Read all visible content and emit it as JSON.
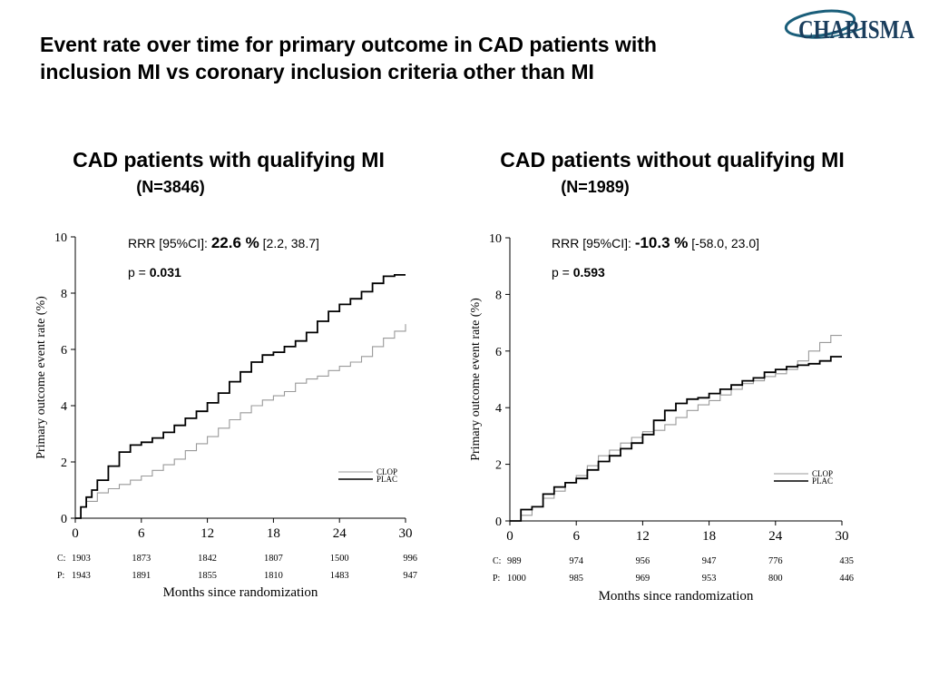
{
  "slide_title_line1": "Event rate over time for primary outcome in CAD patients with",
  "slide_title_line2": "inclusion MI vs coronary inclusion criteria other than MI",
  "logo_text": "CHARISMA",
  "colors": {
    "clop": "#999999",
    "plac": "#000000"
  },
  "chart_data": [
    {
      "type": "line",
      "title": "CAD patients with qualifying MI",
      "subtitle": "(N=3846)",
      "xlabel": "Months since randomization",
      "ylabel": "Primary outcome event rate (%)",
      "xlim": [
        0,
        30
      ],
      "ylim": [
        0,
        10
      ],
      "xticks": [
        0,
        6,
        12,
        18,
        24,
        30
      ],
      "yticks": [
        0,
        2,
        4,
        6,
        8,
        10
      ],
      "grid": false,
      "legend_position": "bottom-right",
      "stats": {
        "rrr_label": "RRR [95%CI]: ",
        "rrr_value": "22.6 %",
        "rrr_ci": " [2.2, 38.7]",
        "p_label": "p = ",
        "p_value": "0.031"
      },
      "series": [
        {
          "name": "CLOP",
          "color": "#999999",
          "x": [
            0,
            0.5,
            1,
            2,
            3,
            4,
            5,
            6,
            7,
            8,
            9,
            10,
            11,
            12,
            13,
            14,
            15,
            16,
            17,
            18,
            19,
            20,
            21,
            22,
            23,
            24,
            25,
            26,
            27,
            28,
            29,
            30
          ],
          "y": [
            0,
            0.4,
            0.6,
            0.9,
            1.05,
            1.2,
            1.35,
            1.5,
            1.7,
            1.9,
            2.1,
            2.4,
            2.65,
            2.9,
            3.2,
            3.5,
            3.75,
            4.0,
            4.2,
            4.35,
            4.5,
            4.8,
            4.95,
            5.05,
            5.25,
            5.4,
            5.55,
            5.75,
            6.1,
            6.4,
            6.65,
            6.9
          ]
        },
        {
          "name": "PLAC",
          "color": "#000000",
          "x": [
            0,
            0.5,
            1,
            1.5,
            2,
            3,
            4,
            5,
            6,
            7,
            8,
            9,
            10,
            11,
            12,
            13,
            14,
            15,
            16,
            17,
            18,
            19,
            20,
            21,
            22,
            23,
            24,
            25,
            26,
            27,
            28,
            29,
            30
          ],
          "y": [
            0,
            0.4,
            0.75,
            1.0,
            1.35,
            1.85,
            2.35,
            2.6,
            2.7,
            2.85,
            3.05,
            3.3,
            3.55,
            3.8,
            4.1,
            4.45,
            4.85,
            5.2,
            5.55,
            5.8,
            5.9,
            6.1,
            6.3,
            6.6,
            7.0,
            7.35,
            7.6,
            7.8,
            8.05,
            8.35,
            8.6,
            8.65,
            8.65
          ]
        }
      ],
      "at_risk": {
        "labels": [
          "C:",
          "P:"
        ],
        "times": [
          0,
          6,
          12,
          18,
          24,
          30
        ],
        "rows": [
          [
            "1903",
            "1873",
            "1842",
            "1807",
            "1500",
            "996"
          ],
          [
            "1943",
            "1891",
            "1855",
            "1810",
            "1483",
            "947"
          ]
        ]
      }
    },
    {
      "type": "line",
      "title": "CAD patients without qualifying MI",
      "subtitle": "(N=1989)",
      "xlabel": "Months since randomization",
      "ylabel": "Primary outcome event rate (%)",
      "xlim": [
        0,
        30
      ],
      "ylim": [
        0,
        10
      ],
      "xticks": [
        0,
        6,
        12,
        18,
        24,
        30
      ],
      "yticks": [
        0,
        2,
        4,
        6,
        8,
        10
      ],
      "grid": false,
      "legend_position": "bottom-right",
      "stats": {
        "rrr_label": "RRR [95%CI]: ",
        "rrr_value": "-10.3 %",
        "rrr_ci": " [-58.0, 23.0]",
        "p_label": "p = ",
        "p_value": "0.593"
      },
      "series": [
        {
          "name": "CLOP",
          "color": "#999999",
          "x": [
            0,
            1,
            2,
            3,
            4,
            5,
            6,
            7,
            8,
            9,
            10,
            11,
            12,
            13,
            14,
            15,
            16,
            17,
            18,
            19,
            20,
            21,
            22,
            23,
            24,
            25,
            26,
            27,
            28,
            29,
            30
          ],
          "y": [
            0,
            0.2,
            0.5,
            0.8,
            1.05,
            1.35,
            1.6,
            1.95,
            2.3,
            2.5,
            2.75,
            2.95,
            3.15,
            3.2,
            3.4,
            3.65,
            3.9,
            4.1,
            4.25,
            4.45,
            4.65,
            4.85,
            4.95,
            5.1,
            5.2,
            5.35,
            5.65,
            6.0,
            6.3,
            6.55,
            6.55
          ]
        },
        {
          "name": "PLAC",
          "color": "#000000",
          "x": [
            0,
            1,
            2,
            3,
            4,
            5,
            6,
            7,
            8,
            9,
            10,
            11,
            12,
            13,
            14,
            15,
            16,
            17,
            18,
            19,
            20,
            21,
            22,
            23,
            24,
            25,
            26,
            27,
            28,
            29,
            30
          ],
          "y": [
            0,
            0.4,
            0.5,
            0.95,
            1.2,
            1.35,
            1.5,
            1.8,
            2.1,
            2.3,
            2.55,
            2.75,
            3.05,
            3.55,
            3.9,
            4.15,
            4.3,
            4.35,
            4.5,
            4.65,
            4.8,
            4.95,
            5.05,
            5.25,
            5.35,
            5.45,
            5.5,
            5.55,
            5.65,
            5.8,
            5.8
          ]
        }
      ],
      "at_risk": {
        "labels": [
          "C:",
          "P:"
        ],
        "times": [
          0,
          6,
          12,
          18,
          24,
          30
        ],
        "rows": [
          [
            "989",
            "974",
            "956",
            "947",
            "776",
            "435"
          ],
          [
            "1000",
            "985",
            "969",
            "953",
            "800",
            "446"
          ]
        ]
      }
    }
  ]
}
